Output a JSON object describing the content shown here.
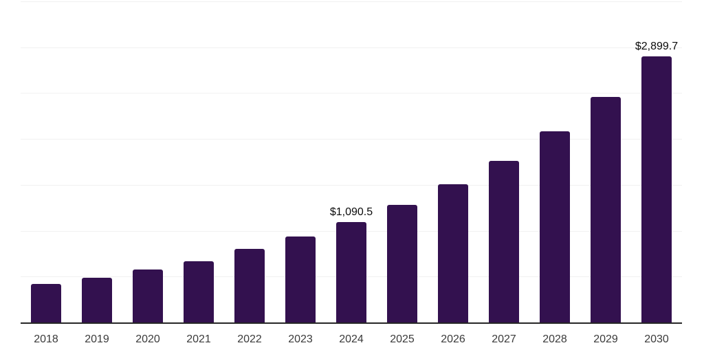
{
  "chart_data": {
    "type": "bar",
    "title": "",
    "xlabel": "",
    "ylabel": "",
    "categories": [
      "2018",
      "2019",
      "2020",
      "2021",
      "2022",
      "2023",
      "2024",
      "2025",
      "2026",
      "2027",
      "2028",
      "2029",
      "2030"
    ],
    "values": [
      420,
      485,
      575,
      670,
      800,
      935,
      1090.5,
      1280,
      1505,
      1760,
      2085,
      2460,
      2899.7
    ],
    "labeled_points": [
      {
        "category": "2024",
        "label": "$1,090.5"
      },
      {
        "category": "2030",
        "label": "$2,899.7"
      }
    ],
    "ylim": [
      0,
      3500
    ],
    "gridline_step": 500,
    "grid": "horizontal",
    "y_tick_labels_shown": false,
    "legend": "none",
    "colors": {
      "bar": "#33114f",
      "axis": "#262626",
      "gridline": "#f1f1f1",
      "x_tick_label": "#3a3a3a",
      "data_label": "#0a0a0a",
      "background": "#ffffff"
    }
  },
  "layout_note": "bar chart, no title, no y-axis labels, value labels only on 2024 and 2030"
}
